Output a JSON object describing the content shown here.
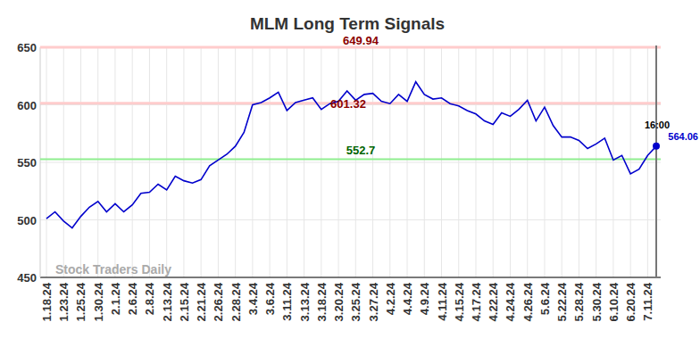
{
  "chart_data": {
    "type": "line",
    "title": "MLM Long Term Signals",
    "watermark": "Stock Traders Daily",
    "categories": [
      "1.18.24",
      null,
      "1.23.24",
      null,
      "1.25.24",
      null,
      "1.30.24",
      null,
      "2.1.24",
      null,
      "2.6.24",
      null,
      "2.8.24",
      null,
      "2.13.24",
      null,
      "2.15.24",
      null,
      "2.21.24",
      null,
      "2.26.24",
      null,
      "2.28.24",
      null,
      "3.4.24",
      null,
      "3.6.24",
      null,
      "3.11.24",
      null,
      "3.13.24",
      null,
      "3.18.24",
      null,
      "3.20.24",
      null,
      "3.25.24",
      null,
      "3.27.24",
      null,
      "4.2.24",
      null,
      "4.4.24",
      null,
      "4.9.24",
      null,
      "4.11.24",
      null,
      "4.15.24",
      null,
      "4.17.24",
      null,
      "4.22.24",
      null,
      "4.24.24",
      null,
      "4.26.24",
      null,
      "5.6.24",
      null,
      "5.22.24",
      null,
      "5.28.24",
      null,
      "5.30.24",
      null,
      "6.10.24",
      null,
      "6.20.24",
      null,
      "7.11.24",
      null
    ],
    "series": [
      {
        "name": "MLM",
        "color": "#0000cc",
        "values": [
          501,
          507,
          499,
          493,
          503,
          511,
          516,
          507,
          514,
          507,
          513,
          523,
          524,
          531,
          526,
          538,
          534,
          532,
          535,
          547,
          552,
          557,
          564,
          576,
          600,
          602,
          606,
          611,
          595,
          602,
          604,
          606,
          596,
          601,
          603,
          612,
          604,
          609,
          610,
          603,
          601,
          609,
          603,
          620,
          609,
          605,
          606,
          601,
          599,
          595,
          592,
          586,
          583,
          593,
          590,
          596,
          604,
          586,
          598,
          582,
          572,
          572,
          569,
          562,
          566,
          571,
          552,
          556,
          540,
          544,
          556,
          564.06
        ]
      }
    ],
    "ylim": [
      450,
      650
    ],
    "yticks": [
      450,
      500,
      550,
      600,
      650
    ],
    "grid": true,
    "annotations": [
      {
        "text": "649.94",
        "value": 649.94,
        "color": "#8b0000"
      },
      {
        "text": "601.32",
        "value": 601.32,
        "color": "#8b0000"
      },
      {
        "text": "552.7",
        "value": 552.7,
        "color": "#006400"
      },
      {
        "text": "16:00"
      },
      {
        "text": "564.06",
        "value": 564.06,
        "color": "#0000cc"
      }
    ]
  }
}
